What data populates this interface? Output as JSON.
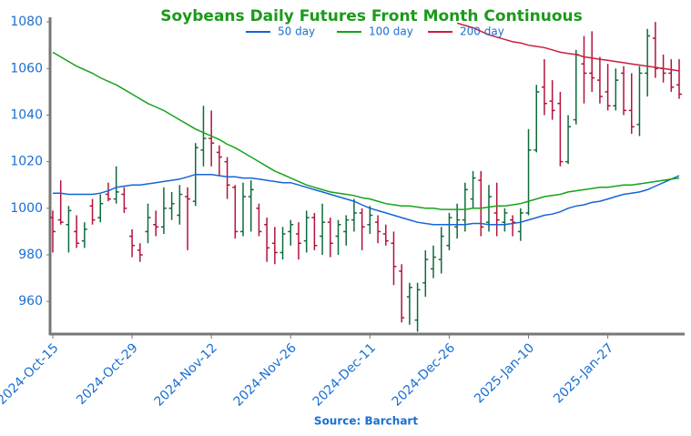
{
  "chart_data": {
    "type": "ohlc",
    "title": "Soybeans Daily Futures Front Month Continuous",
    "source": "Source: Barchart",
    "categories": [
      "2024-Oct-15",
      null,
      null,
      null,
      null,
      null,
      null,
      null,
      null,
      null,
      "2024-Oct-29",
      null,
      null,
      null,
      null,
      null,
      null,
      null,
      null,
      null,
      "2024-Nov-12",
      null,
      null,
      null,
      null,
      null,
      null,
      null,
      null,
      null,
      "2024-Nov-26",
      null,
      null,
      null,
      null,
      null,
      null,
      null,
      null,
      null,
      "2024-Dec-11",
      null,
      null,
      null,
      null,
      null,
      null,
      null,
      null,
      null,
      "2024-Dec-26",
      null,
      null,
      null,
      null,
      null,
      null,
      null,
      null,
      null,
      "2025-Jan-10",
      null,
      null,
      null,
      null,
      null,
      null,
      null,
      null,
      null,
      "2025-Jan-27",
      null,
      null,
      null,
      null,
      null,
      null,
      null,
      null,
      null
    ],
    "open": [
      996,
      995,
      993,
      990,
      986,
      1001,
      996,
      1006,
      1004,
      1006,
      988,
      982,
      990,
      993,
      992,
      1000,
      997,
      1005,
      1003,
      1025,
      1030,
      1024,
      1020,
      1009,
      990,
      1005,
      1000,
      993,
      985,
      981,
      990,
      989,
      986,
      996,
      988,
      994,
      988,
      990,
      995,
      998,
      993,
      994,
      989,
      985,
      973,
      962,
      952,
      968,
      974,
      978,
      984,
      992,
      995,
      1004,
      1012,
      994,
      998,
      994,
      995,
      990,
      998,
      1025,
      1052,
      1046,
      1045,
      1020,
      1038,
      1062,
      1058,
      1055,
      1050,
      1044,
      1058,
      1042,
      1036,
      1058,
      1073,
      1060,
      1058,
      1053
    ],
    "high": [
      999,
      1012,
      1001,
      997,
      994,
      1004,
      1006,
      1011,
      1018,
      1009,
      991,
      985,
      1002,
      999,
      1009,
      1007,
      1010,
      1009,
      1028,
      1044,
      1042,
      1027,
      1022,
      1010,
      1011,
      1012,
      1002,
      996,
      992,
      992,
      995,
      994,
      999,
      998,
      1002,
      996,
      995,
      997,
      1004,
      1000,
      1001,
      997,
      993,
      990,
      976,
      968,
      968,
      982,
      984,
      992,
      998,
      1002,
      1011,
      1016,
      1016,
      1010,
      1011,
      1000,
      997,
      1000,
      1034,
      1053,
      1064,
      1055,
      1050,
      1040,
      1068,
      1074,
      1076,
      1065,
      1062,
      1060,
      1061,
      1058,
      1061,
      1077,
      1080,
      1066,
      1064,
      1064
    ],
    "low": [
      981,
      993,
      981,
      983,
      983,
      993,
      994,
      1003,
      1002,
      998,
      979,
      977,
      985,
      988,
      989,
      995,
      993,
      982,
      1001,
      1018,
      1018,
      1014,
      1004,
      987,
      988,
      990,
      988,
      977,
      976,
      978,
      984,
      978,
      981,
      982,
      980,
      979,
      980,
      984,
      990,
      982,
      989,
      985,
      984,
      967,
      951,
      950,
      947,
      962,
      970,
      972,
      982,
      987,
      990,
      1000,
      988,
      990,
      988,
      990,
      988,
      986,
      997,
      1024,
      1040,
      1038,
      1018,
      1019,
      1036,
      1045,
      1050,
      1045,
      1042,
      1042,
      1040,
      1032,
      1031,
      1048,
      1056,
      1054,
      1050,
      1047
    ],
    "close": [
      990,
      994,
      999,
      985,
      991,
      995,
      1002,
      1004,
      1007,
      1000,
      984,
      980,
      996,
      992,
      1000,
      1002,
      1006,
      1004,
      1026,
      1030,
      1028,
      1022,
      1010,
      990,
      1005,
      1008,
      990,
      983,
      981,
      989,
      993,
      985,
      996,
      984,
      994,
      985,
      993,
      995,
      998,
      992,
      997,
      990,
      986,
      975,
      953,
      966,
      965,
      978,
      979,
      988,
      996,
      995,
      1008,
      1013,
      992,
      1005,
      995,
      998,
      994,
      998,
      1025,
      1050,
      1045,
      1042,
      1020,
      1035,
      1066,
      1058,
      1056,
      1048,
      1044,
      1055,
      1042,
      1035,
      1058,
      1074,
      1060,
      1058,
      1052,
      1049
    ],
    "up_color": "#0f6b3a",
    "down_color": "#b3133a",
    "lines": [
      {
        "name": "50 day",
        "color": "#1565d8",
        "values": [
          1006.5,
          1006.5,
          1006,
          1006,
          1006,
          1006,
          1006.5,
          1007.5,
          1009,
          1009.5,
          1010,
          1010,
          1010.5,
          1011,
          1011.5,
          1012,
          1012.5,
          1013.5,
          1014.5,
          1014.5,
          1014.5,
          1014,
          1013.5,
          1013.5,
          1013,
          1013,
          1012.5,
          1012,
          1011.5,
          1011,
          1011,
          1010,
          1009,
          1008,
          1007,
          1006,
          1005,
          1004,
          1003,
          1001.5,
          1000,
          999,
          998,
          997,
          996,
          995,
          994,
          993.5,
          993,
          993,
          993,
          993,
          993,
          993.5,
          993.5,
          993,
          993,
          993,
          993.5,
          994,
          995,
          996,
          997,
          997.5,
          998.5,
          1000,
          1001,
          1001.5,
          1002.5,
          1003,
          1004,
          1005,
          1006,
          1006.5,
          1007,
          1008,
          1009.5,
          1011,
          1012.5,
          1014
        ]
      },
      {
        "name": "100 day",
        "color": "#17a21a",
        "values": [
          1067,
          1065,
          1063,
          1061,
          1059.5,
          1058,
          1056,
          1054.5,
          1053,
          1051,
          1049,
          1047,
          1045,
          1043.5,
          1042,
          1040,
          1038,
          1036,
          1034,
          1032.5,
          1031,
          1029.5,
          1027.5,
          1026,
          1024,
          1022,
          1020,
          1018,
          1016,
          1014.5,
          1013,
          1011.5,
          1010,
          1009,
          1008,
          1007,
          1006.5,
          1006,
          1005.5,
          1004.5,
          1004,
          1003,
          1002,
          1001.5,
          1001,
          1001,
          1000.5,
          1000,
          1000,
          999.5,
          999.5,
          999.5,
          999.5,
          1000,
          1000,
          1000.5,
          1001,
          1001,
          1001.5,
          1002,
          1003,
          1004,
          1005,
          1005.5,
          1006,
          1007,
          1007.5,
          1008,
          1008.5,
          1009,
          1009,
          1009.5,
          1010,
          1010,
          1010.5,
          1011,
          1011.5,
          1012,
          1012.5,
          1013
        ]
      },
      {
        "name": "200 day",
        "color": "#c8203f",
        "values": [
          null,
          null,
          null,
          null,
          null,
          null,
          null,
          null,
          null,
          null,
          null,
          null,
          null,
          null,
          null,
          null,
          null,
          null,
          null,
          null,
          null,
          null,
          null,
          null,
          null,
          null,
          null,
          null,
          null,
          null,
          null,
          null,
          null,
          null,
          null,
          null,
          null,
          null,
          null,
          null,
          null,
          null,
          null,
          null,
          null,
          null,
          null,
          null,
          null,
          null,
          null,
          1079.5,
          1078.5,
          1077.5,
          1076,
          1074.5,
          1073.5,
          1072.5,
          1071.5,
          1071,
          1070,
          1069.5,
          1069,
          1068,
          1067,
          1066.5,
          1066,
          1065,
          1064.5,
          1064,
          1063.5,
          1063,
          1062.5,
          1062,
          1061.5,
          1061,
          1060.5,
          1060,
          1059.5,
          1059
        ]
      }
    ],
    "ylim": [
      946,
      1082
    ],
    "yticks": [
      960,
      980,
      1000,
      1020,
      1040,
      1060,
      1080
    ]
  }
}
